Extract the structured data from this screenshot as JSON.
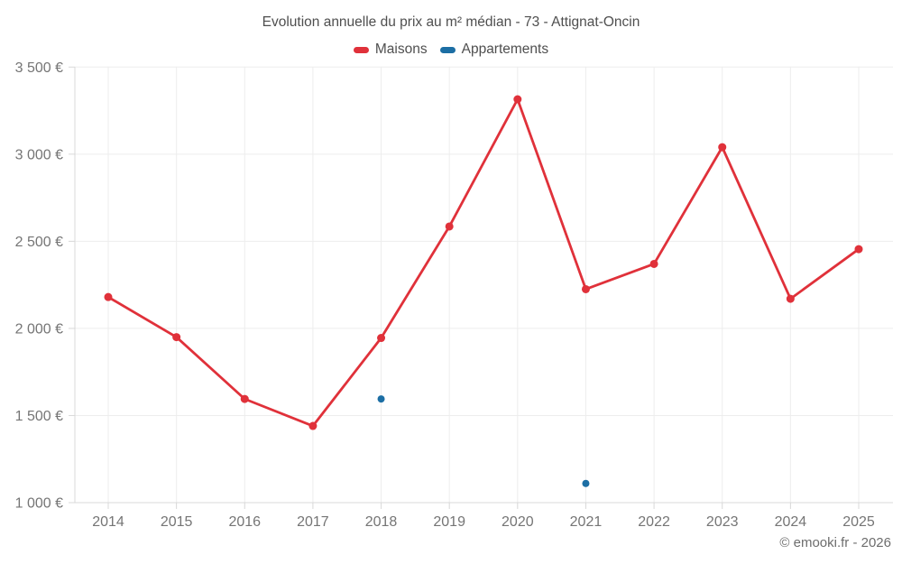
{
  "chart_data": {
    "type": "line",
    "title": "Evolution annuelle du prix au m² médian - 73 - Attignat-Oncin",
    "categories": [
      "2014",
      "2015",
      "2016",
      "2017",
      "2018",
      "2019",
      "2020",
      "2021",
      "2022",
      "2023",
      "2024",
      "2025"
    ],
    "series": [
      {
        "name": "Maisons",
        "color": "#e0313a",
        "marker_radius": 4.5,
        "values": [
          2180,
          1950,
          1595,
          1440,
          1945,
          2585,
          3315,
          2225,
          2370,
          3040,
          2170,
          2455
        ]
      },
      {
        "name": "Appartements",
        "color": "#1c6ea4",
        "marker_radius": 4,
        "values": [
          null,
          null,
          null,
          null,
          1595,
          null,
          null,
          1110,
          null,
          null,
          null,
          null
        ]
      }
    ],
    "xlabel": "",
    "ylabel": "",
    "ylim": [
      1000,
      3500
    ],
    "ytick_step": 500,
    "ytick_suffix": " €",
    "grid": true,
    "legend_position": "top"
  },
  "attribution": "© emooki.fr - 2026",
  "colors": {
    "grid": "#ededed",
    "axis": "#d8d8d8",
    "tick_label": "#757575",
    "title_text": "#4f4f4f",
    "legend_text": "#4f4f4f",
    "attribution_text": "#6d6d6d",
    "background": "#ffffff"
  }
}
